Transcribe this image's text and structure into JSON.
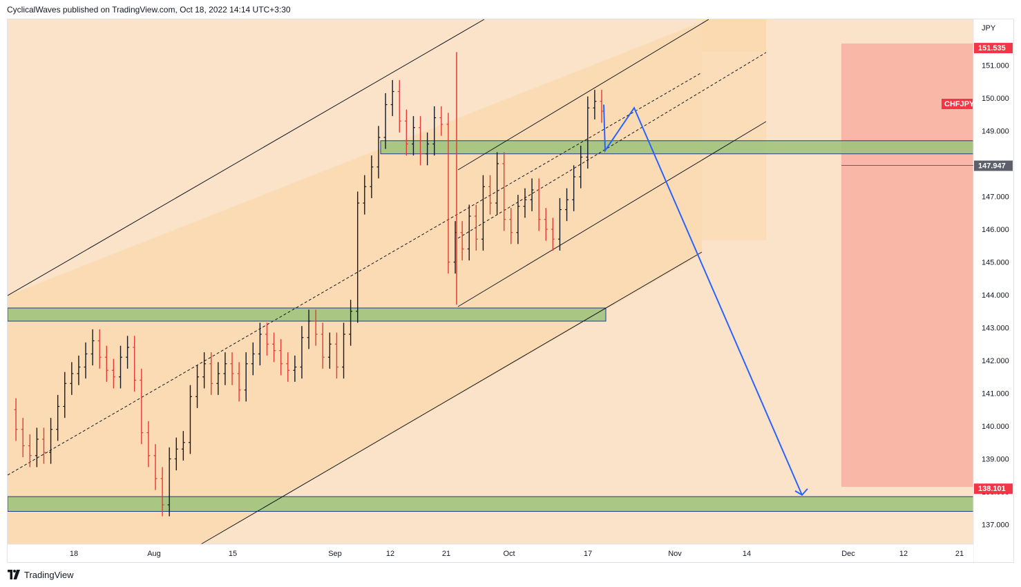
{
  "header": {
    "publisher_line": "CyclicalWaves published on TradingView.com, Oct 18, 2022 14:14 UTC+3:30"
  },
  "footer": {
    "brand": "TradingView"
  },
  "colors": {
    "background_channel": "#fbe3c9",
    "channel_fill": "#fbd9b0",
    "support_zone": "#9bc27a",
    "support_border": "#1e3a8a",
    "target_box": "#f8b2a3",
    "arrow": "#2962ff",
    "price_tag": "#f23645",
    "candle_up": "#131722",
    "candle_down": "#e53935"
  },
  "chart_data": {
    "type": "line",
    "symbol": "CHFJPY",
    "currency": "JPY",
    "price_labels": {
      "top": "151.535",
      "current": "147.947",
      "bottom": "138.101"
    },
    "y_ticks": [
      "151.000",
      "150.000",
      "149.000",
      "148.000",
      "147.000",
      "146.000",
      "145.000",
      "144.000",
      "143.000",
      "142.000",
      "141.000",
      "140.000",
      "139.000",
      "138.000",
      "137.000"
    ],
    "x_ticks": [
      "18",
      "Aug",
      "15",
      "Sep",
      "12",
      "21",
      "Oct",
      "17",
      "Nov",
      "14",
      "Dec",
      "12",
      "21"
    ],
    "ylim": [
      136.4,
      152.4
    ],
    "support_zones": [
      {
        "low": 148.3,
        "high": 148.7
      },
      {
        "low": 143.2,
        "high": 143.6
      },
      {
        "low": 137.4,
        "high": 137.85
      }
    ],
    "target_box": {
      "low": 138.101,
      "high": 151.535
    },
    "projected_path": [
      149.8,
      148.4,
      149.7,
      137.9
    ],
    "price_series": [
      140.5,
      139.9,
      139.4,
      139.1,
      139.6,
      139.2,
      139.9,
      140.6,
      141.3,
      141.6,
      141.8,
      142.2,
      142.6,
      142.1,
      141.7,
      141.5,
      142.1,
      142.4,
      141.4,
      139.8,
      139.1,
      138.4,
      137.6,
      139.0,
      139.3,
      139.5,
      140.9,
      141.5,
      141.9,
      141.3,
      141.6,
      141.9,
      141.6,
      141.1,
      141.9,
      142.2,
      142.8,
      142.5,
      142.3,
      141.9,
      141.7,
      141.8,
      142.7,
      143.2,
      142.8,
      142.1,
      142.5,
      141.8,
      142.8,
      143.5,
      146.8,
      147.3,
      147.9,
      148.8,
      149.8,
      150.2,
      149.3,
      148.6,
      149.1,
      148.3,
      148.6,
      149.4,
      149.2,
      145.0,
      145.9,
      145.4,
      146.4,
      145.7,
      147.3,
      146.8,
      148.0,
      146.3,
      145.9,
      146.7,
      146.9,
      147.2,
      146.3,
      146.0,
      145.7,
      146.6,
      146.9,
      147.6,
      148.2,
      149.7,
      149.9,
      149.6
    ]
  }
}
